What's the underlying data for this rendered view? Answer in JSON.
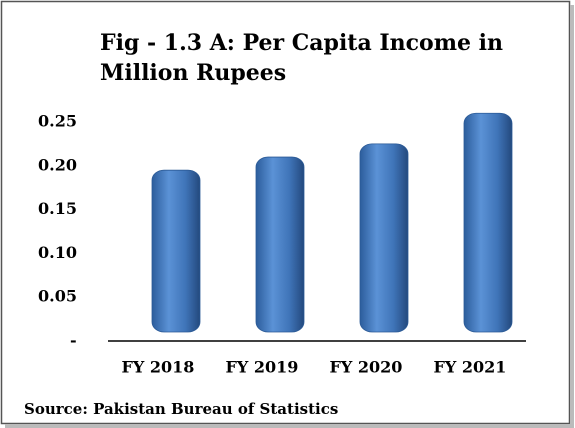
{
  "chart_data": {
    "type": "bar",
    "title_lines": [
      "Fig - 1.3 A: Per Capita Income  in",
      "Million Rupees"
    ],
    "categories": [
      "FY 2018",
      "FY 2019",
      "FY 2020",
      "FY 2021"
    ],
    "values": [
      0.195,
      0.21,
      0.225,
      0.26
    ],
    "color": "#4a7fc4",
    "ylim": [
      0,
      0.3
    ],
    "yticks": [
      {
        "value": 0,
        "label": "-"
      },
      0.05,
      {
        "value": 0.1,
        "label": "0.10"
      },
      0.15,
      {
        "value": 0.2,
        "label": "0.20"
      },
      0.25
    ],
    "source": "Source: Pakistan Bureau of Statistics"
  }
}
